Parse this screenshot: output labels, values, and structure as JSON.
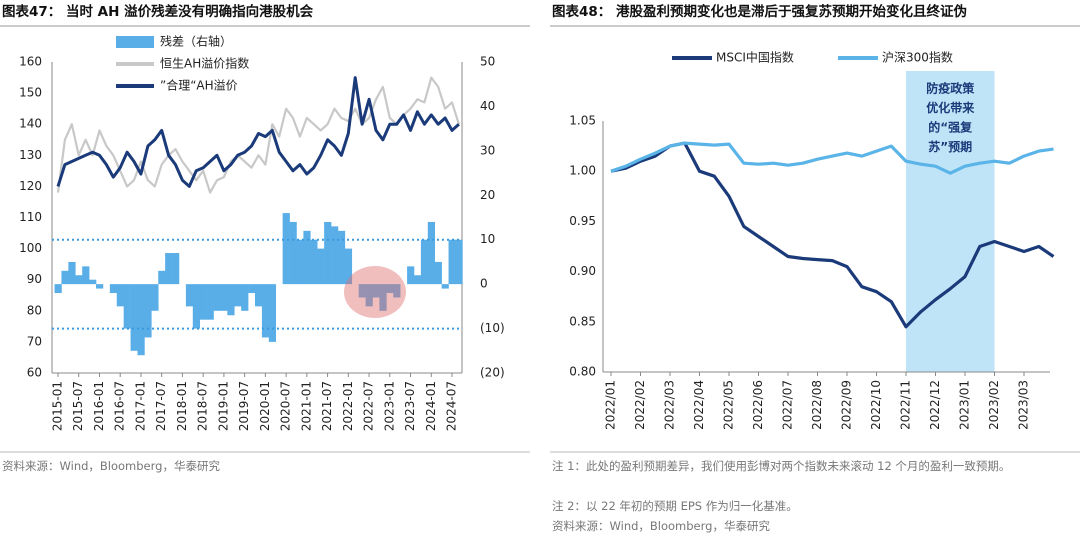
{
  "chart_data": [
    {
      "type": "combo",
      "title": "图表47：  当时 AH 溢价残差没有明确指向港股机会",
      "source": "资料来源：Wind，Bloomberg，华泰研究",
      "categories": [
        "2015-01",
        null,
        null,
        "2015-07",
        null,
        null,
        "2016-01",
        null,
        null,
        "2016-07",
        null,
        null,
        "2017-01",
        null,
        null,
        "2017-07",
        null,
        null,
        "2018-01",
        null,
        null,
        "2018-07",
        null,
        null,
        "2019-01",
        null,
        null,
        "2019-07",
        null,
        null,
        "2020-01",
        null,
        null,
        "2020-07",
        null,
        null,
        "2021-01",
        null,
        null,
        "2021-07",
        null,
        null,
        "2022-01",
        null,
        null,
        "2022-07",
        null,
        null,
        "2023-01",
        null,
        null,
        "2023-07",
        null,
        null,
        "2024-01",
        null,
        null,
        "2024-07",
        null
      ],
      "ylim": [
        60,
        160
      ],
      "yticks": [
        60,
        70,
        80,
        90,
        100,
        110,
        120,
        130,
        140,
        150,
        160
      ],
      "y2lim": [
        -20,
        50
      ],
      "y2ticks": [
        {
          "value": -20,
          "label": "(20)"
        },
        {
          "value": -10,
          "label": "(10)"
        },
        0,
        10,
        20,
        30,
        40,
        50
      ],
      "reference_lines": [
        10,
        -10
      ],
      "reference_color": "#3a9ae0",
      "grid": false,
      "series": [
        {
          "name": "残差（右轴）",
          "type": "area",
          "axis": "y2",
          "color": "#5aaee8",
          "values": [
            -2,
            3,
            5,
            2,
            4,
            1,
            -1,
            0,
            -2,
            -5,
            -10,
            -15,
            -16,
            -12,
            -6,
            3,
            7,
            7,
            0,
            -5,
            -10,
            -8,
            -8,
            -6,
            -6,
            -7,
            -5,
            -6,
            -2,
            -5,
            -12,
            -13,
            0,
            16,
            14,
            10,
            12,
            10,
            8,
            14,
            13,
            12,
            8,
            0,
            -3,
            -5,
            -3,
            -6,
            -2,
            -3,
            0,
            4,
            2,
            10,
            14,
            5,
            -1,
            10,
            10
          ]
        },
        {
          "name": "恒生AH溢价指数",
          "type": "line",
          "color": "#c8c8c8",
          "values": [
            118,
            135,
            140,
            130,
            135,
            130,
            138,
            133,
            130,
            125,
            120,
            122,
            128,
            122,
            120,
            127,
            130,
            132,
            128,
            125,
            122,
            125,
            118,
            122,
            123,
            128,
            130,
            128,
            126,
            130,
            127,
            140,
            136,
            145,
            142,
            136,
            142,
            140,
            138,
            140,
            145,
            142,
            141,
            145,
            140,
            142,
            148,
            152,
            142,
            140,
            143,
            145,
            148,
            147,
            155,
            152,
            145,
            147,
            140
          ]
        },
        {
          "name": "”合理“AH溢价",
          "type": "line",
          "color": "#1a3a7a",
          "values": [
            120,
            127,
            128,
            129,
            130,
            131,
            130,
            127,
            123,
            126,
            131,
            128,
            124,
            133,
            135,
            138,
            130,
            127,
            122,
            120,
            125,
            126,
            128,
            130,
            125,
            127,
            130,
            131,
            133,
            137,
            136,
            138,
            131,
            128,
            125,
            127,
            124,
            126,
            130,
            135,
            133,
            130,
            137,
            155,
            140,
            148,
            138,
            135,
            140,
            140,
            143,
            138,
            144,
            140,
            143,
            140,
            142,
            138,
            140
          ]
        }
      ]
    },
    {
      "type": "line",
      "title": "图表48：  港股盈利预期变化也是滞后于强复苏预期开始变化且终证伪",
      "notes": [
        "注 1：此处的盈利预期差异，我们使用彭博对两个指数未来滚动 12 个月的盈利一致预期。",
        "注 2：以 22 年初的预期 EPS 作为归一化基准。",
        "资料来源：Wind，Bloomberg，华泰研究"
      ],
      "categories": [
        "2022/01",
        null,
        "2022/02",
        null,
        "2022/03",
        null,
        "2022/04",
        null,
        "2022/05",
        null,
        "2022/06",
        null,
        "2022/07",
        null,
        "2022/08",
        null,
        "2022/09",
        null,
        "2022/10",
        null,
        "2022/11",
        null,
        "2022/12",
        null,
        "2023/01",
        null,
        "2023/02",
        null,
        "2023/03",
        null,
        null
      ],
      "ylim": [
        0.8,
        1.05
      ],
      "yticks": [
        {
          "value": 0.8,
          "label": "0.80"
        },
        0.85,
        {
          "value": 0.9,
          "label": "0.90"
        },
        0.95,
        {
          "value": 1,
          "label": "1.00"
        },
        1.05
      ],
      "grid": false,
      "shade": {
        "from": "2022/11",
        "to": "2023/02",
        "color": "#bfe4f7"
      },
      "annotation": {
        "lines": [
          "防疫政策",
          "优化带来",
          "的“强复",
          "苏”预期"
        ],
        "color": "#1a3a7a"
      },
      "series": [
        {
          "name": "MSCI中国指数",
          "color": "#1a3a7a",
          "values": [
            1.0,
            1.003,
            1.01,
            1.015,
            1.025,
            1.028,
            1.0,
            0.995,
            0.975,
            0.945,
            0.935,
            0.925,
            0.915,
            0.913,
            0.912,
            0.911,
            0.905,
            0.885,
            0.88,
            0.87,
            0.845,
            0.86,
            0.872,
            0.883,
            0.895,
            0.925,
            0.93,
            0.925,
            0.92,
            0.925,
            0.915
          ]
        },
        {
          "name": "沪深300指数",
          "color": "#5ab4e8",
          "values": [
            1.0,
            1.005,
            1.012,
            1.018,
            1.025,
            1.028,
            1.027,
            1.026,
            1.027,
            1.008,
            1.007,
            1.008,
            1.006,
            1.008,
            1.012,
            1.015,
            1.018,
            1.015,
            1.02,
            1.025,
            1.01,
            1.007,
            1.005,
            0.998,
            1.005,
            1.008,
            1.01,
            1.008,
            1.015,
            1.02,
            1.022
          ]
        }
      ]
    }
  ]
}
